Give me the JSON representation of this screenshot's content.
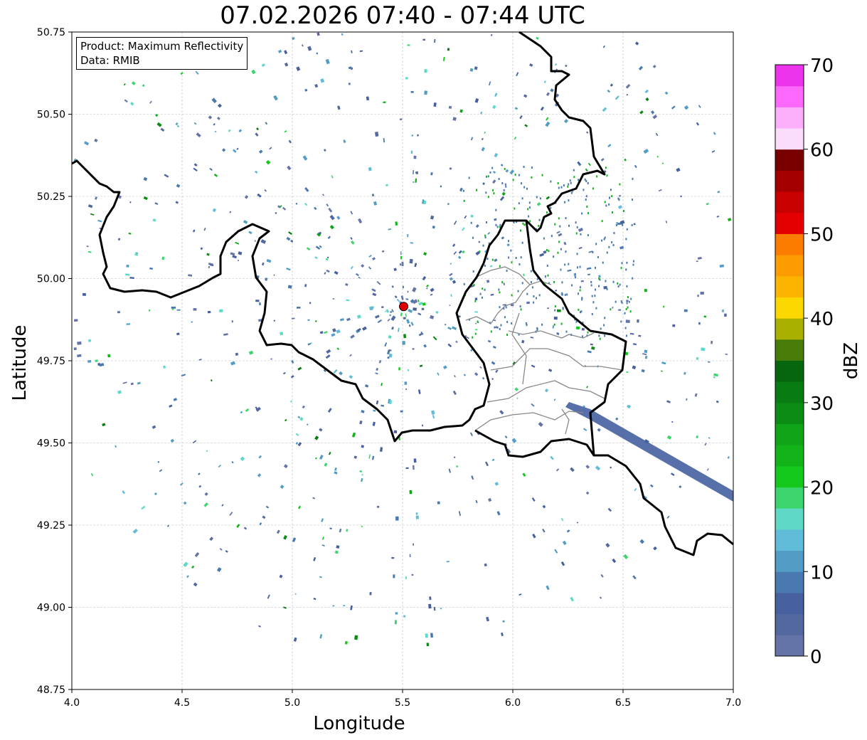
{
  "title": "07.02.2026 07:40 - 07:44 UTC",
  "legend": {
    "product": "Product: Maximum Reflectivity",
    "data": "Data: RMIB"
  },
  "radar_site": {
    "lon": 5.505,
    "lat": 49.915,
    "color": "#e00000"
  },
  "chart_data": {
    "type": "heatmap",
    "title": "07.02.2026 07:40 - 07:44 UTC",
    "xlabel": "Longitude",
    "ylabel": "Latitude",
    "xlim": [
      4.0,
      7.0
    ],
    "ylim": [
      48.75,
      50.75
    ],
    "xticks": [
      "4.0",
      "4.5",
      "5.0",
      "5.5",
      "6.0",
      "6.5",
      "7.0"
    ],
    "yticks": [
      "48.75",
      "49.00",
      "49.25",
      "49.50",
      "49.75",
      "50.00",
      "50.25",
      "50.50",
      "50.75"
    ],
    "grid": true,
    "colorbar": {
      "label": "dBZ",
      "range": [
        0,
        70
      ],
      "step": 2.5,
      "ticks": [
        "0",
        "10",
        "20",
        "30",
        "40",
        "50",
        "60",
        "70"
      ],
      "colors": [
        "#6474a8",
        "#5468a0",
        "#4660a0",
        "#4a78b0",
        "#529cc6",
        "#60bcd8",
        "#60d8c8",
        "#3cd46c",
        "#14c81c",
        "#12b41a",
        "#10a418",
        "#0c8c14",
        "#087c12",
        "#06660e",
        "#487c08",
        "#aab000",
        "#fcd800",
        "#fcb400",
        "#fc9c00",
        "#fc7c00",
        "#e40000",
        "#c80000",
        "#a40000",
        "#780000",
        "#fcdcfc",
        "#fcb0fc",
        "#fc68fc",
        "#ec34ec"
      ]
    }
  }
}
